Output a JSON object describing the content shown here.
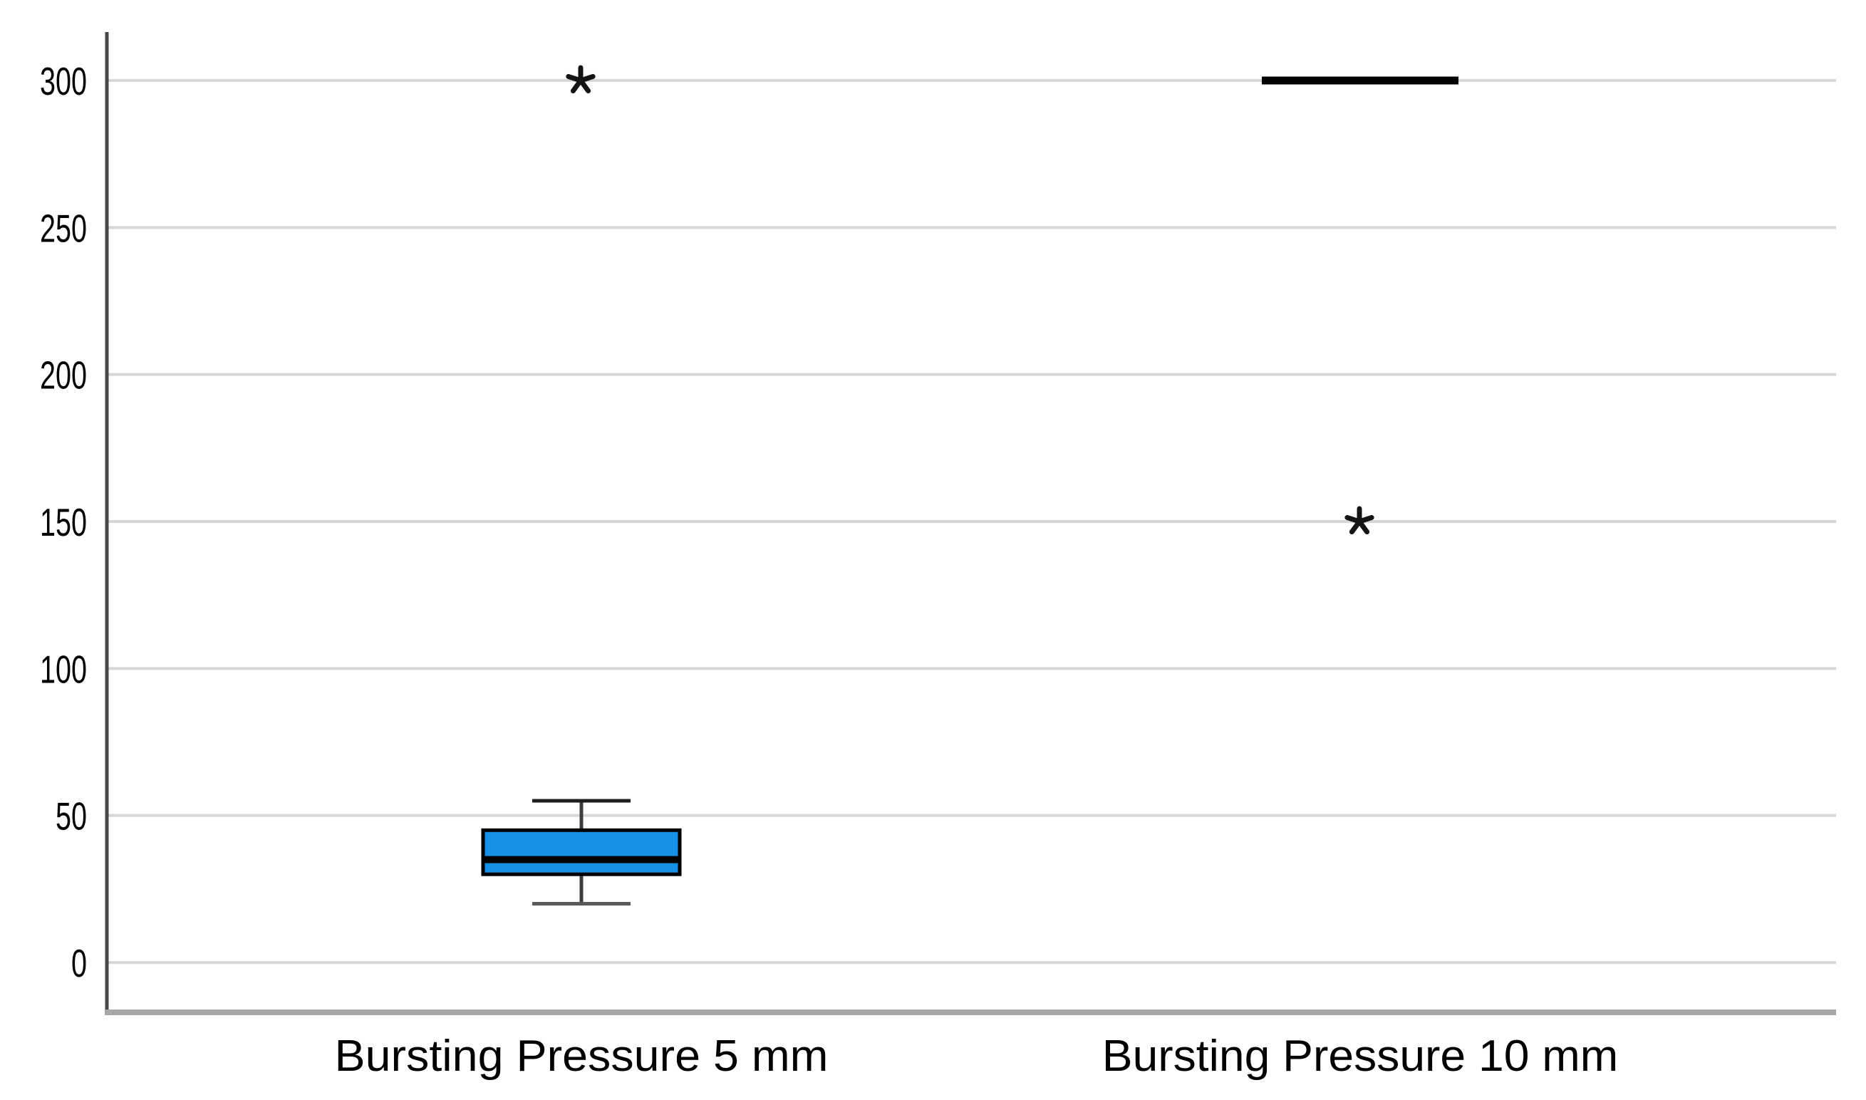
{
  "chart_data": {
    "type": "boxplot",
    "title": "",
    "xlabel": "",
    "ylabel": "",
    "categories": [
      "Bursting Pressure 5 mm",
      "Bursting Pressure 10 mm"
    ],
    "series": [
      {
        "name": "Bursting Pressure 5 mm",
        "whisker_low": 20,
        "q1": 30,
        "median": 35,
        "q3": 45,
        "whisker_high": 55,
        "outliers": [
          300
        ]
      },
      {
        "name": "Bursting Pressure 10 mm",
        "whisker_low": 300,
        "q1": 300,
        "median": 300,
        "q3": 300,
        "whisker_high": 300,
        "outliers": [
          150
        ]
      }
    ],
    "yticks": [
      0,
      50,
      100,
      150,
      200,
      250,
      300
    ],
    "ylim": [
      -17,
      316
    ],
    "grid": "horizontal",
    "legend": "none",
    "outlier_marker": "asterisk",
    "colors": {
      "box_fill": "#1591E6",
      "box_border": "#000000",
      "median": "#000000",
      "whisker_stem": "#3D3D3D",
      "whisker_cap_top": "#1F1F1F",
      "whisker_cap_bottom": "#5A5A5A",
      "outlier": "#141414",
      "gridline": "#D6D6D6",
      "y_axis_line": "#474747",
      "x_axis_line": "#A6A6A6",
      "tick_text": "#000000"
    }
  }
}
